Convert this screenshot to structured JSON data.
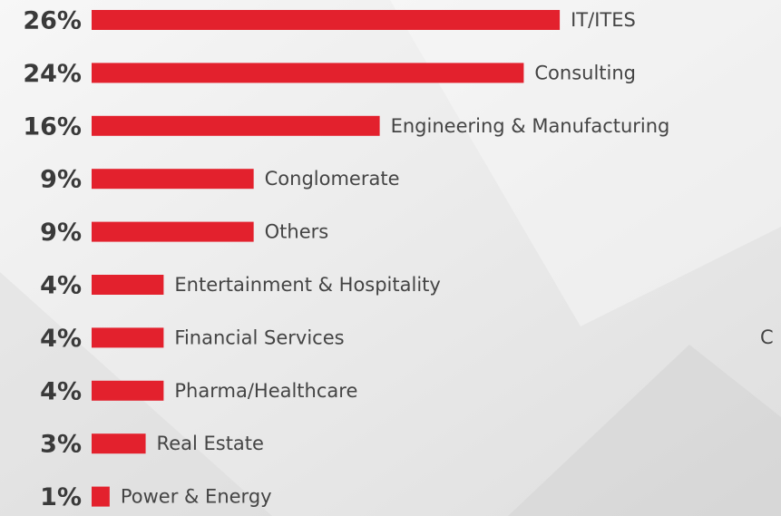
{
  "chart_data": {
    "type": "bar",
    "orientation": "horizontal",
    "categories": [
      "IT/ITES",
      "Consulting",
      "Engineering & Manufacturing",
      "Conglomerate",
      "Others",
      "Entertainment & Hospitality",
      "Financial Services",
      "Pharma/Healthcare",
      "Real Estate",
      "Power & Energy"
    ],
    "values": [
      26,
      24,
      16,
      9,
      9,
      4,
      4,
      4,
      3,
      1
    ],
    "value_labels": [
      "26%",
      "24%",
      "16%",
      "9%",
      "9%",
      "4%",
      "4%",
      "4%",
      "3%",
      "1%"
    ],
    "color": "#e3212d",
    "annotations": [
      "C"
    ]
  }
}
